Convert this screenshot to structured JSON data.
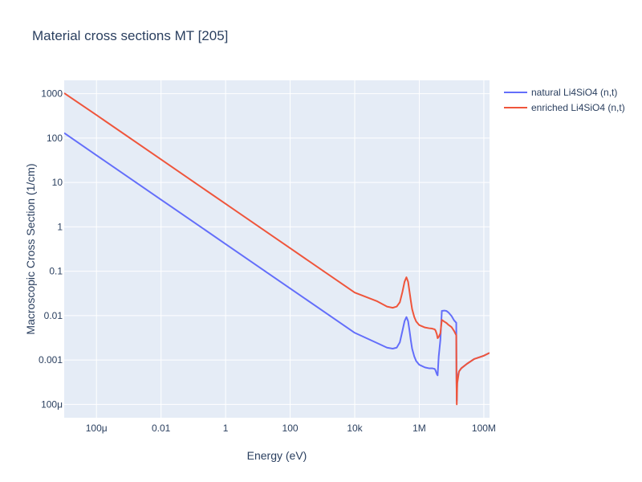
{
  "chart_data": {
    "type": "line",
    "title": "Material cross sections MT [205]",
    "xlabel": "Energy (eV)",
    "ylabel": "Macroscopic Cross Section (1/cm)",
    "x_scale": "log",
    "y_scale": "log",
    "xlim": [
      1e-05,
      150000000
    ],
    "ylim": [
      5e-05,
      2000
    ],
    "grid": true,
    "legend_position": "top-right",
    "x_ticks": [
      {
        "value": 0.0001,
        "label": "100μ"
      },
      {
        "value": 0.01,
        "label": "0.01"
      },
      {
        "value": 1,
        "label": "1"
      },
      {
        "value": 100,
        "label": "100"
      },
      {
        "value": 10000,
        "label": "10k"
      },
      {
        "value": 1000000,
        "label": "1M"
      },
      {
        "value": 100000000,
        "label": "100M"
      }
    ],
    "y_ticks": [
      {
        "value": 0.0001,
        "label": "100μ"
      },
      {
        "value": 0.001,
        "label": "0.001"
      },
      {
        "value": 0.01,
        "label": "0.01"
      },
      {
        "value": 0.1,
        "label": "0.1"
      },
      {
        "value": 1,
        "label": "1"
      },
      {
        "value": 10,
        "label": "10"
      },
      {
        "value": 100,
        "label": "100"
      },
      {
        "value": 1000,
        "label": "1000"
      }
    ],
    "series": [
      {
        "name": "natural Li4SiO4 (n,t)",
        "color": "#636efa",
        "x": [
          1e-05,
          0.0001,
          0.01,
          1,
          100,
          10000,
          50000,
          100000,
          150000,
          200000,
          250000,
          300000,
          350000,
          400000,
          450000,
          500000,
          550000,
          600000,
          700000,
          800000,
          1000000,
          1500000,
          2000000,
          2500000,
          3000000,
          3200000,
          3500000,
          3700000,
          4000000,
          4500000,
          5000000,
          6000000,
          7000000,
          8000000,
          10000000,
          12000000,
          14000000,
          14200000,
          14500000,
          15000000,
          17000000,
          20000000,
          30000000,
          50000000,
          100000000,
          150000000
        ],
        "y": [
          130,
          41,
          4.1,
          0.41,
          0.041,
          0.0041,
          0.0024,
          0.0019,
          0.0018,
          0.0019,
          0.0025,
          0.0045,
          0.0075,
          0.0093,
          0.0075,
          0.0045,
          0.0027,
          0.0018,
          0.0012,
          0.00095,
          0.00078,
          0.00068,
          0.00065,
          0.00065,
          0.00063,
          0.00058,
          0.00048,
          0.00045,
          0.0012,
          0.0028,
          0.0128,
          0.013,
          0.0127,
          0.0118,
          0.0098,
          0.0078,
          0.0069,
          0.0004,
          0.00012,
          0.0004,
          0.00055,
          0.00065,
          0.00082,
          0.00105,
          0.00125,
          0.00145
        ]
      },
      {
        "name": "enriched Li4SiO4 (n,t)",
        "color": "#ef553b",
        "x": [
          1e-05,
          0.0001,
          0.01,
          1,
          100,
          10000,
          50000,
          100000,
          150000,
          200000,
          250000,
          300000,
          350000,
          400000,
          450000,
          500000,
          550000,
          600000,
          700000,
          800000,
          1000000,
          1500000,
          2000000,
          2500000,
          3000000,
          3200000,
          3500000,
          3700000,
          4000000,
          4500000,
          5000000,
          6000000,
          7000000,
          8000000,
          10000000,
          12000000,
          14000000,
          14200000,
          14500000,
          15000000,
          17000000,
          20000000,
          30000000,
          50000000,
          100000000,
          150000000
        ],
        "y": [
          1030,
          330,
          33,
          3.3,
          0.33,
          0.033,
          0.021,
          0.016,
          0.015,
          0.016,
          0.02,
          0.034,
          0.058,
          0.073,
          0.058,
          0.034,
          0.021,
          0.014,
          0.0093,
          0.0074,
          0.0061,
          0.0054,
          0.0052,
          0.0051,
          0.0049,
          0.0046,
          0.0038,
          0.0031,
          0.0033,
          0.004,
          0.008,
          0.0073,
          0.0068,
          0.0062,
          0.0055,
          0.0045,
          0.0036,
          0.0004,
          0.0001,
          0.0003,
          0.00055,
          0.00065,
          0.00082,
          0.00105,
          0.00125,
          0.00145
        ]
      }
    ]
  }
}
